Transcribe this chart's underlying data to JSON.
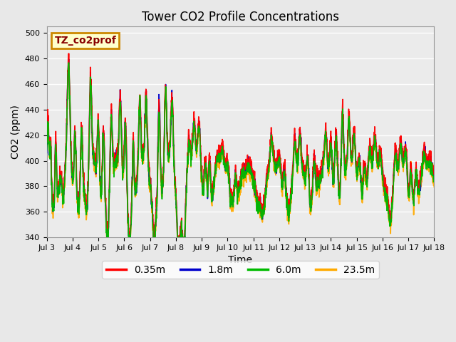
{
  "title": "Tower CO2 Profile Concentrations",
  "xlabel": "Time",
  "ylabel": "CO2 (ppm)",
  "ylim": [
    340,
    505
  ],
  "yticks": [
    340,
    360,
    380,
    400,
    420,
    440,
    460,
    480,
    500
  ],
  "annotation_text": "TZ_co2prof",
  "annotation_bbox": {
    "boxstyle": "square,pad=0.3",
    "facecolor": "#ffffcc",
    "edgecolor": "#cc8800",
    "linewidth": 2.0
  },
  "annotation_color": "#880000",
  "annotation_fontsize": 10,
  "annotation_fontweight": "bold",
  "series_colors": [
    "#ff0000",
    "#0000cc",
    "#00bb00",
    "#ffaa00"
  ],
  "series_labels": [
    "0.35m",
    "1.8m",
    "6.0m",
    "23.5m"
  ],
  "series_linewidth": 1.2,
  "background_color": "#e8e8e8",
  "plot_bg_color": "#ebebeb",
  "grid_color": "#ffffff",
  "grid_linewidth": 1.0,
  "legend_fontsize": 10,
  "title_fontsize": 12,
  "axis_label_fontsize": 10,
  "tick_fontsize": 8,
  "x_start": 3,
  "x_end": 18,
  "xtick_positions": [
    3,
    4,
    5,
    6,
    7,
    8,
    9,
    10,
    11,
    12,
    13,
    14,
    15,
    16,
    17,
    18
  ],
  "xtick_labels": [
    "Jul 3",
    "Jul 4",
    "Jul 5",
    "Jul 6",
    "Jul 7",
    "Jul 8",
    "Jul 9",
    "Jul 10",
    "Jul 11",
    "Jul 12",
    "Jul 13",
    "Jul 14",
    "Jul 15",
    "Jul 16",
    "Jul 17",
    "Jul 18"
  ]
}
